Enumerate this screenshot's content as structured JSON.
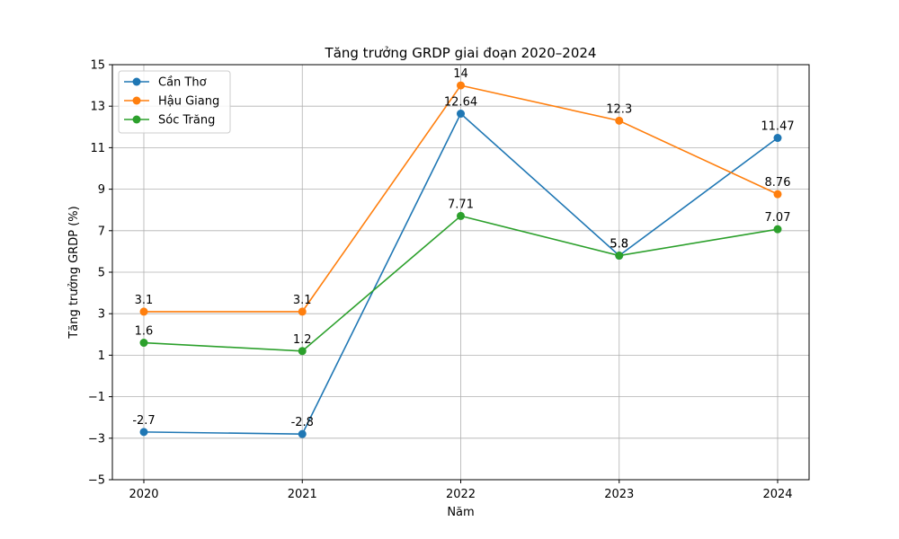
{
  "chart_data": {
    "type": "line",
    "title": "Tăng trưởng GRDP giai đoạn 2020–2024",
    "xlabel": "Năm",
    "ylabel": "Tăng trưởng GRDP (%)",
    "categories": [
      "2020",
      "2021",
      "2022",
      "2023",
      "2024"
    ],
    "ylim": [
      -5,
      15
    ],
    "yticks": [
      "−5",
      "−3",
      "−1",
      "1",
      "3",
      "5",
      "7",
      "9",
      "11",
      "13",
      "15"
    ],
    "grid": true,
    "legend_position": "top-left",
    "series": [
      {
        "name": "Cần Thơ",
        "color": "#1f77b4",
        "values": [
          -2.7,
          -2.8,
          12.64,
          5.8,
          11.47
        ],
        "labels": [
          "-2.7",
          "-2.8",
          "12.64",
          "5.8",
          "11.47"
        ]
      },
      {
        "name": "Hậu Giang",
        "color": "#ff7f0e",
        "values": [
          3.1,
          3.1,
          14,
          12.3,
          8.76
        ],
        "labels": [
          "3.1",
          "3.1",
          "14",
          "12.3",
          "8.76"
        ]
      },
      {
        "name": "Sóc Trăng",
        "color": "#2ca02c",
        "values": [
          1.6,
          1.2,
          7.71,
          5.8,
          7.07
        ],
        "labels": [
          "1.6",
          "1.2",
          "7.71",
          "5.8",
          "7.07"
        ]
      }
    ]
  }
}
